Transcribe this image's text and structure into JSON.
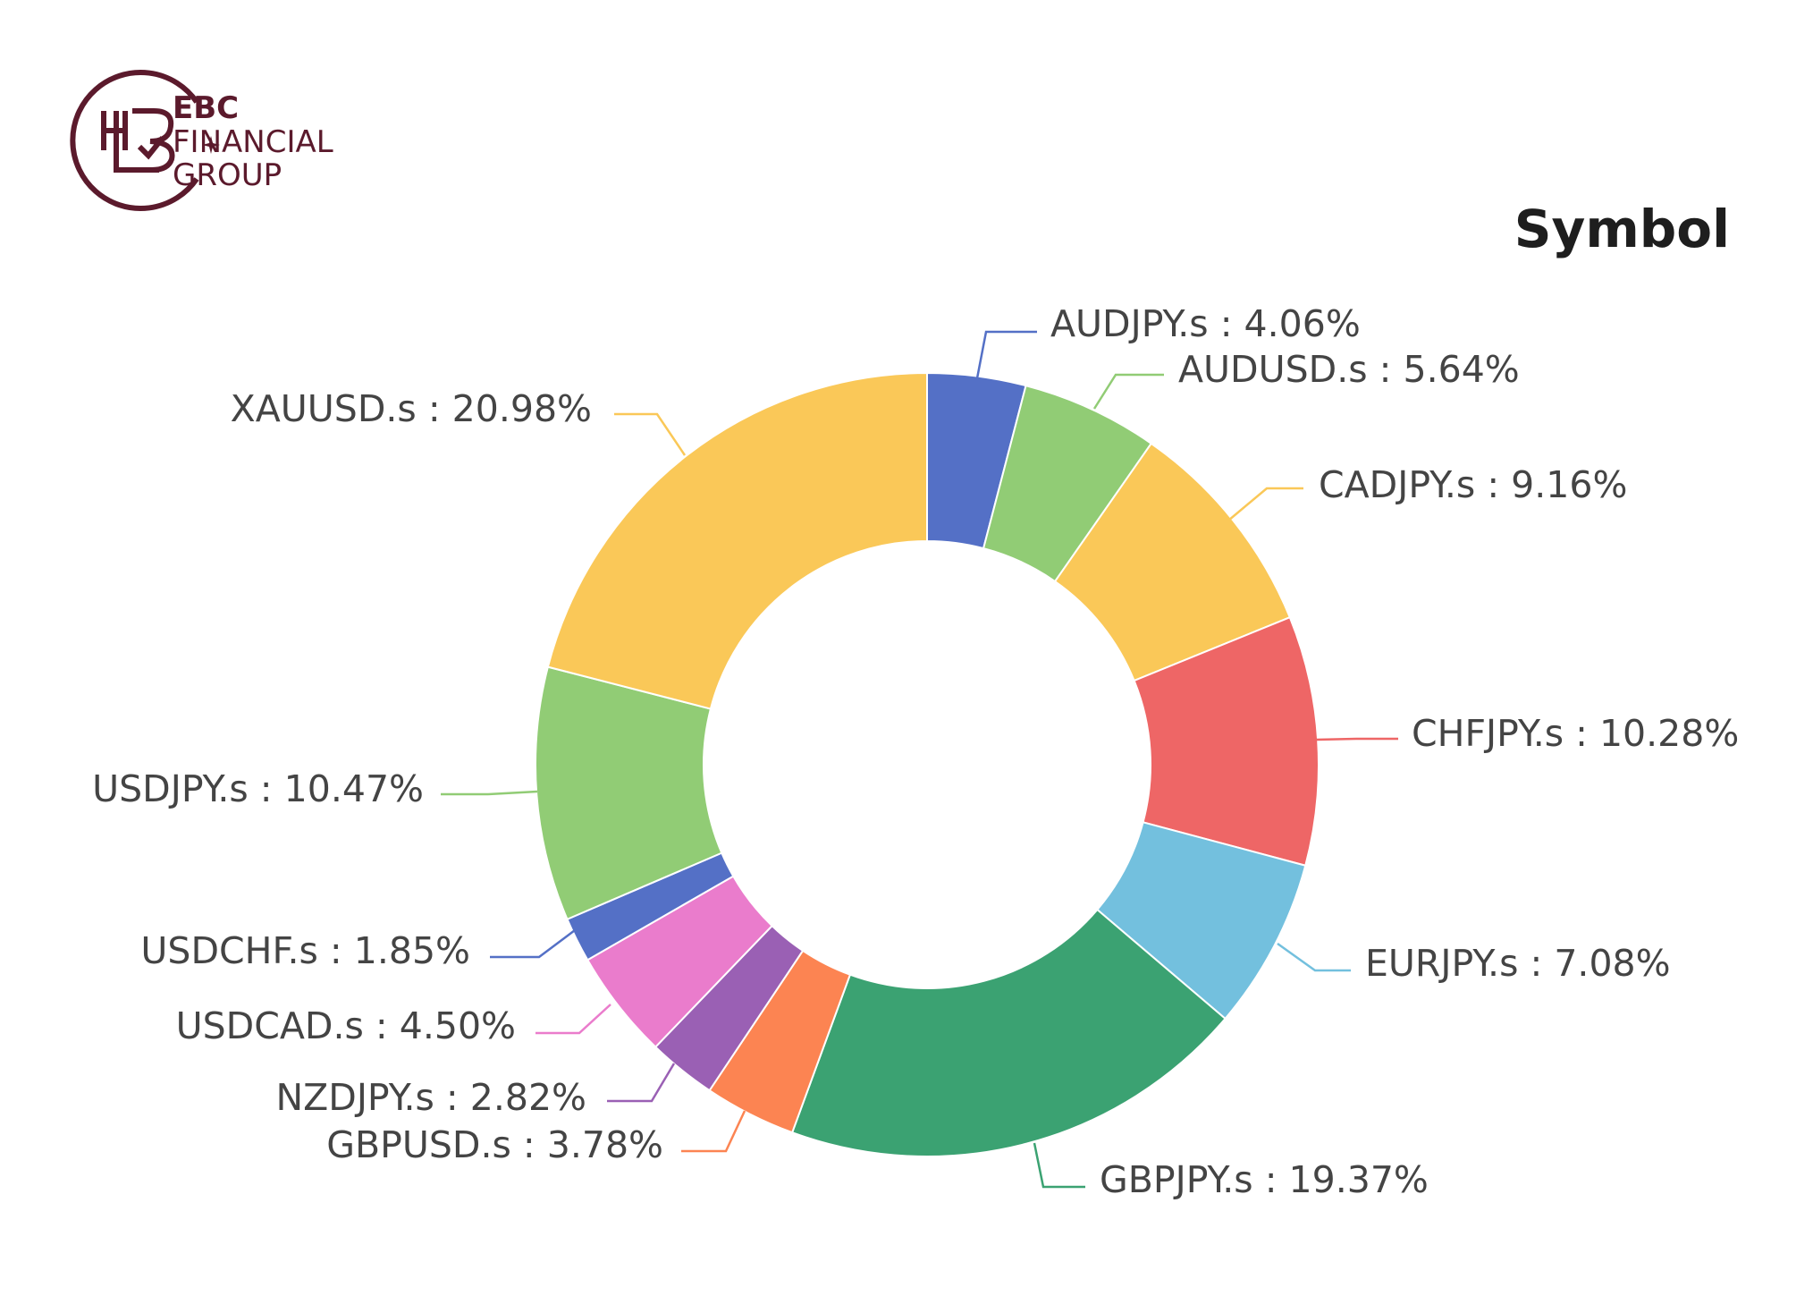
{
  "brand": {
    "line1": "EBC",
    "line2": "FINANCIAL",
    "line3": "GROUP",
    "color": "#5b1a2c"
  },
  "chart_data": {
    "type": "pie",
    "style": "donut",
    "title": "Symbol",
    "label_format": "{name} : {pct}%",
    "slices": [
      {
        "name": "AUDJPY.s",
        "value": 4.06,
        "color": "#5470c6"
      },
      {
        "name": "AUDUSD.s",
        "value": 5.64,
        "color": "#91cc75"
      },
      {
        "name": "CADJPY.s",
        "value": 9.16,
        "color": "#fac858"
      },
      {
        "name": "CHFJPY.s",
        "value": 10.28,
        "color": "#ee6666"
      },
      {
        "name": "EURJPY.s",
        "value": 7.08,
        "color": "#73c0de"
      },
      {
        "name": "GBPJPY.s",
        "value": 19.37,
        "color": "#3ba272"
      },
      {
        "name": "GBPUSD.s",
        "value": 3.78,
        "color": "#fc8452"
      },
      {
        "name": "NZDJPY.s",
        "value": 2.82,
        "color": "#9a60b4"
      },
      {
        "name": "USDCAD.s",
        "value": 4.5,
        "color": "#ea7ccc"
      },
      {
        "name": "USDCHF.s",
        "value": 1.85,
        "color": "#5470c6"
      },
      {
        "name": "USDJPY.s",
        "value": 10.47,
        "color": "#91cc75"
      },
      {
        "name": "XAUUSD.s",
        "value": 20.98,
        "color": "#fac858"
      }
    ]
  }
}
